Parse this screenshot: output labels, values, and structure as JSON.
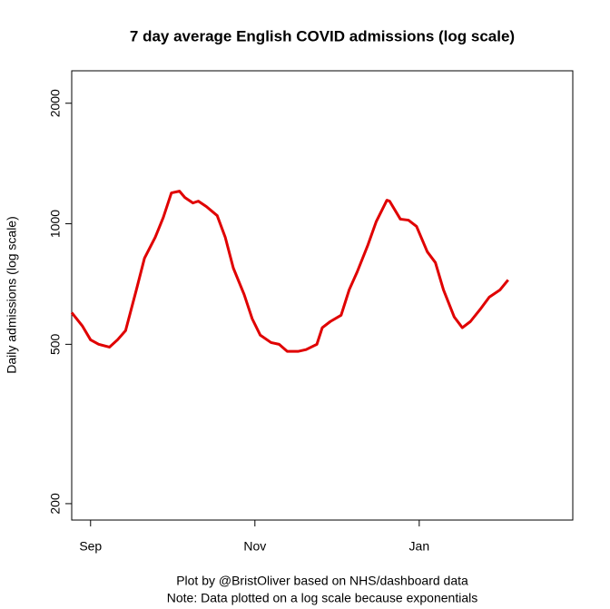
{
  "chart_data": {
    "type": "line",
    "title": "7 day average English COVID admissions (log scale)",
    "y_label": "Daily admissions (log scale)",
    "footnotes": [
      "Plot by @BristOliver based on NHS/dashboard data",
      "Note: Data plotted on a log scale because exponentials"
    ],
    "x": [
      -7,
      -3,
      0,
      3,
      7,
      10,
      13,
      17,
      20,
      24,
      27,
      30,
      33,
      35,
      38,
      40,
      43,
      47,
      50,
      53,
      57,
      60,
      63,
      67,
      70,
      73,
      77,
      80,
      84,
      86,
      89,
      93,
      96,
      99,
      103,
      106,
      110,
      111,
      115,
      118,
      121,
      125,
      128,
      131,
      135,
      138,
      141,
      145,
      148,
      152,
      155
    ],
    "series": [
      {
        "name": "7 day average admissions",
        "color": "#e00000",
        "values": [
          600,
          555,
          513,
          500,
          492,
          513,
          541,
          684,
          820,
          925,
          1037,
          1194,
          1206,
          1163,
          1127,
          1139,
          1104,
          1048,
          925,
          775,
          666,
          579,
          527,
          505,
          500,
          480,
          480,
          485,
          500,
          550,
          570,
          591,
          684,
          759,
          887,
          1011,
          1145,
          1139,
          1027,
          1021,
          985,
          851,
          800,
          684,
          585,
          550,
          570,
          616,
          656,
          684,
          724
        ]
      }
    ],
    "xlim": [
      -7,
      179
    ],
    "xticks": [
      {
        "value": 0,
        "label": "Sep"
      },
      {
        "value": 61,
        "label": "Nov"
      },
      {
        "value": 122,
        "label": "Jan"
      }
    ],
    "ylim": [
      182,
      2410
    ],
    "yticks": [
      200,
      500,
      1000,
      2000
    ],
    "y_log": true,
    "grid": false
  }
}
